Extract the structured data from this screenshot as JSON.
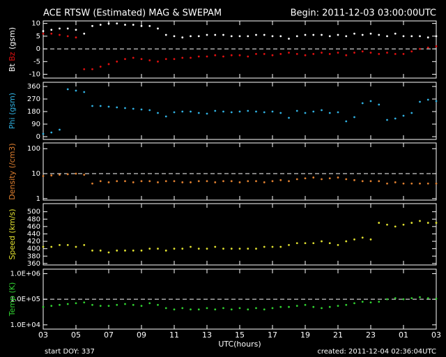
{
  "header": {
    "title": "ACE RTSW (Estimated) MAG & SWEPAM",
    "begin": "Begin: 2011-12-03 03:00:00UTC"
  },
  "footer": {
    "x_label": "UTC(hours)",
    "start_doy": "start DOY: 337",
    "created": "created: 2011-12-04 02:36:04UTC"
  },
  "chart_data": [
    {
      "type": "scatter",
      "ylabel": [
        {
          "text": "Bt",
          "color": "#ffffff"
        },
        {
          "text": "Bz",
          "color": "#e01010"
        },
        {
          "text": "(gsm)",
          "color": "#ffffff"
        }
      ],
      "xlim": [
        0,
        24
      ],
      "ylim": [
        -11.5,
        11
      ],
      "yticks": [
        10,
        5,
        0,
        -5,
        -10
      ],
      "ref_line": 0,
      "x": [
        0,
        0.5,
        1,
        1.5,
        2,
        2.5,
        3,
        3.5,
        4,
        4.5,
        5,
        5.5,
        6,
        6.5,
        7,
        7.5,
        8,
        8.5,
        9,
        9.5,
        10,
        10.5,
        11,
        11.5,
        12,
        12.5,
        13,
        13.5,
        14,
        14.5,
        15,
        15.5,
        16,
        16.5,
        17,
        17.5,
        18,
        18.5,
        19,
        19.5,
        20,
        20.5,
        21,
        21.5,
        22,
        22.5,
        23,
        23.5,
        24
      ],
      "series": [
        {
          "name": "Bt",
          "color": "#ffffff",
          "values": [
            7,
            7.5,
            8,
            8,
            7.5,
            6,
            9,
            9.5,
            10,
            10,
            9.5,
            9.5,
            9,
            9,
            8,
            5.5,
            5,
            4.5,
            5,
            5,
            5.5,
            5.5,
            5.5,
            5,
            5,
            5,
            5.5,
            5.5,
            5,
            5,
            4,
            5,
            5.5,
            5.5,
            5.5,
            5,
            5.5,
            5,
            6,
            5.5,
            6,
            5.5,
            5,
            6,
            5,
            5,
            5,
            4.5,
            5
          ]
        },
        {
          "name": "Bz",
          "color": "#e01010",
          "values": [
            6,
            6,
            5.5,
            5,
            4.5,
            -8,
            -8,
            -7,
            -6,
            -5,
            -4,
            -3.5,
            -4,
            -4.5,
            -5,
            -4,
            -4,
            -3.5,
            -3.5,
            -3,
            -3,
            -2.5,
            -3,
            -2.5,
            -2.5,
            -3,
            -2,
            -2,
            -2.5,
            -2,
            -1.5,
            -2,
            -2.5,
            -2,
            -1.5,
            -2,
            -1.5,
            -2.5,
            -1.5,
            -1,
            -1.5,
            -2,
            -1.5,
            -2,
            -2,
            -1,
            0,
            0.5,
            1
          ]
        }
      ]
    },
    {
      "type": "scatter",
      "ylabel": [
        {
          "text": "Phi (gsm)",
          "color": "#30b0e0"
        }
      ],
      "xlim": [
        0,
        24
      ],
      "ylim": [
        -20,
        390
      ],
      "yticks": [
        360,
        270,
        180,
        90,
        0
      ],
      "x": [
        0,
        0.5,
        1,
        1.5,
        2,
        2.5,
        3,
        3.5,
        4,
        4.5,
        5,
        5.5,
        6,
        6.5,
        7,
        7.5,
        8,
        8.5,
        9,
        9.5,
        10,
        10.5,
        11,
        11.5,
        12,
        12.5,
        13,
        13.5,
        14,
        14.5,
        15,
        15.5,
        16,
        16.5,
        17,
        17.5,
        18,
        18.5,
        19,
        19.5,
        20,
        20.5,
        21,
        21.5,
        22,
        22.5,
        23,
        23.5,
        24
      ],
      "series": [
        {
          "name": "Phi",
          "color": "#30b0e0",
          "values": [
            20,
            30,
            50,
            340,
            330,
            320,
            220,
            220,
            215,
            210,
            205,
            200,
            195,
            190,
            170,
            145,
            175,
            180,
            180,
            170,
            165,
            185,
            180,
            175,
            180,
            185,
            180,
            175,
            180,
            170,
            135,
            185,
            170,
            180,
            190,
            170,
            175,
            110,
            140,
            240,
            255,
            230,
            120,
            130,
            150,
            170,
            250,
            265,
            255
          ]
        }
      ]
    },
    {
      "type": "scatter",
      "log": true,
      "ylabel": [
        {
          "text": "Density (/cm3)",
          "color": "#e08030"
        }
      ],
      "xlim": [
        0,
        24
      ],
      "ylim": [
        0.87,
        170
      ],
      "yticks": [
        100,
        10,
        1
      ],
      "ref_line": 10,
      "x": [
        0,
        0.5,
        1,
        1.5,
        2,
        2.5,
        3,
        3.5,
        4,
        4.5,
        5,
        5.5,
        6,
        6.5,
        7,
        7.5,
        8,
        8.5,
        9,
        9.5,
        10,
        10.5,
        11,
        11.5,
        12,
        12.5,
        13,
        13.5,
        14,
        14.5,
        15,
        15.5,
        16,
        16.5,
        17,
        17.5,
        18,
        18.5,
        19,
        19.5,
        20,
        20.5,
        21,
        21.5,
        22,
        22.5,
        23,
        23.5,
        24
      ],
      "series": [
        {
          "name": "Density",
          "color": "#e08030",
          "values": [
            8,
            8.5,
            9,
            9.5,
            10,
            9,
            4,
            5,
            4.5,
            5,
            5,
            4.5,
            5,
            5,
            4.5,
            5,
            5,
            4.5,
            4.5,
            5,
            5,
            4.5,
            5,
            5,
            4.5,
            5,
            5,
            4.5,
            5,
            5.5,
            5,
            6,
            6.5,
            7,
            6,
            6.5,
            7,
            6,
            5.5,
            5,
            5,
            5,
            4,
            4.5,
            4,
            4,
            4,
            4,
            4
          ]
        }
      ]
    },
    {
      "type": "scatter",
      "ylabel": [
        {
          "text": "Speed (km/s)",
          "color": "#e0e030"
        }
      ],
      "xlim": [
        0,
        24
      ],
      "ylim": [
        356,
        522
      ],
      "yticks": [
        500,
        480,
        460,
        440,
        420,
        400,
        380,
        360
      ],
      "x": [
        0,
        0.5,
        1,
        1.5,
        2,
        2.5,
        3,
        3.5,
        4,
        4.5,
        5,
        5.5,
        6,
        6.5,
        7,
        7.5,
        8,
        8.5,
        9,
        9.5,
        10,
        10.5,
        11,
        11.5,
        12,
        12.5,
        13,
        13.5,
        14,
        14.5,
        15,
        15.5,
        16,
        16.5,
        17,
        17.5,
        18,
        18.5,
        19,
        19.5,
        20,
        20.5,
        21,
        21.5,
        22,
        22.5,
        23,
        23.5,
        24
      ],
      "series": [
        {
          "name": "Speed",
          "color": "#e0e030",
          "values": [
            405,
            405,
            410,
            410,
            405,
            410,
            395,
            395,
            390,
            395,
            395,
            395,
            395,
            400,
            400,
            395,
            400,
            400,
            405,
            400,
            400,
            405,
            400,
            400,
            400,
            400,
            400,
            405,
            405,
            405,
            410,
            415,
            415,
            415,
            420,
            415,
            410,
            420,
            425,
            430,
            425,
            470,
            465,
            460,
            465,
            470,
            475,
            470,
            470
          ]
        }
      ]
    },
    {
      "type": "scatter",
      "log": true,
      "ylabel": [
        {
          "text": "Temp (K)",
          "color": "#30d030"
        }
      ],
      "xlim": [
        0,
        24
      ],
      "ylim": [
        6800,
        1500000
      ],
      "yticks": [
        {
          "value": 1000000,
          "label": "1.0E+06"
        },
        {
          "value": 100000,
          "label": "1.0E+05"
        },
        {
          "value": 10000,
          "label": "1.0E+04"
        }
      ],
      "ref_line": 100000,
      "xticks": [
        {
          "value": 0,
          "label": "03"
        },
        {
          "value": 2,
          "label": "05"
        },
        {
          "value": 4,
          "label": "07"
        },
        {
          "value": 6,
          "label": "09"
        },
        {
          "value": 8,
          "label": "11"
        },
        {
          "value": 10,
          "label": "13"
        },
        {
          "value": 12,
          "label": "15"
        },
        {
          "value": 14,
          "label": "17"
        },
        {
          "value": 16,
          "label": "19"
        },
        {
          "value": 18,
          "label": "21"
        },
        {
          "value": 20,
          "label": "23"
        },
        {
          "value": 22,
          "label": "01"
        },
        {
          "value": 24,
          "label": "03"
        }
      ],
      "x": [
        0,
        0.5,
        1,
        1.5,
        2,
        2.5,
        3,
        3.5,
        4,
        4.5,
        5,
        5.5,
        6,
        6.5,
        7,
        7.5,
        8,
        8.5,
        9,
        9.5,
        10,
        10.5,
        11,
        11.5,
        12,
        12.5,
        13,
        13.5,
        14,
        14.5,
        15,
        15.5,
        16,
        16.5,
        17,
        17.5,
        18,
        18.5,
        19,
        19.5,
        20,
        20.5,
        21,
        21.5,
        22,
        22.5,
        23,
        23.5,
        24
      ],
      "series": [
        {
          "name": "Temp",
          "color": "#30d030",
          "values": [
            50000,
            55000,
            60000,
            65000,
            70000,
            75000,
            60000,
            55000,
            55000,
            60000,
            65000,
            60000,
            55000,
            70000,
            60000,
            45000,
            40000,
            45000,
            40000,
            40000,
            45000,
            40000,
            45000,
            40000,
            45000,
            40000,
            45000,
            40000,
            45000,
            50000,
            50000,
            55000,
            60000,
            50000,
            45000,
            50000,
            55000,
            60000,
            70000,
            80000,
            75000,
            80000,
            100000,
            110000,
            100000,
            110000,
            120000,
            110000,
            105000
          ]
        }
      ]
    }
  ]
}
